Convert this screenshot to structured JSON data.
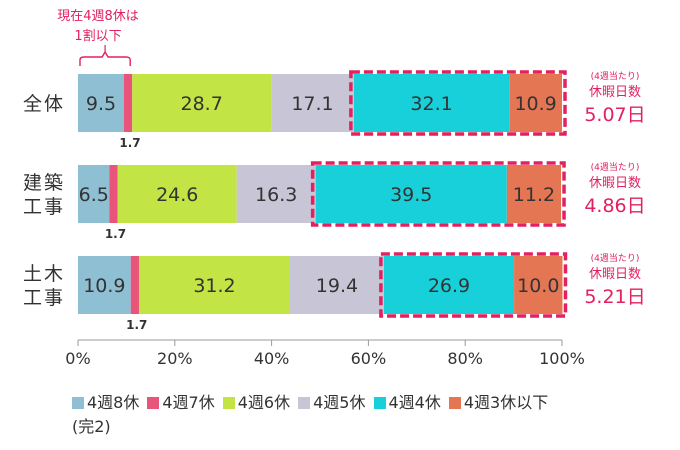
{
  "chart_data": {
    "type": "bar",
    "orientation": "horizontal",
    "stacked": true,
    "categories": [
      "全体",
      "建築\n工事",
      "土木\n工事"
    ],
    "series": [
      {
        "name": "4週8休",
        "color": "#8ebfd3",
        "values": [
          9.5,
          6.5,
          10.9
        ]
      },
      {
        "name": "4週7休",
        "color": "#e9557a",
        "values": [
          1.7,
          1.7,
          1.7
        ]
      },
      {
        "name": "4週6休",
        "color": "#c2e445",
        "values": [
          28.7,
          24.6,
          31.2
        ]
      },
      {
        "name": "4週5休",
        "color": "#c8c6d6",
        "values": [
          17.1,
          16.3,
          19.4
        ]
      },
      {
        "name": "4週4休",
        "color": "#18d0da",
        "values": [
          32.1,
          39.5,
          26.9
        ]
      },
      {
        "name": "4週3休以下",
        "color": "#e57654",
        "values": [
          10.9,
          11.2,
          10.0
        ]
      }
    ],
    "value_labels": [
      [
        "9.5",
        "1.7",
        "28.7",
        "17.1",
        "32.1",
        "10.9"
      ],
      [
        "6.5",
        "1.7",
        "24.6",
        "16.3",
        "39.5",
        "11.2"
      ],
      [
        "10.9",
        "1.7",
        "31.2",
        "19.4",
        "26.9",
        "10.0"
      ]
    ],
    "xlim": [
      0,
      100
    ],
    "x_ticks": [
      "0%",
      "20%",
      "40%",
      "60%",
      "80%",
      "100%"
    ],
    "highlight_series": [
      "4週4休",
      "4週3休以下"
    ],
    "highlight_color": "#e2215f",
    "side_notes": [
      {
        "small": "(4週当たり)",
        "label": "休暇日数",
        "value": "5.07日"
      },
      {
        "small": "(4週当たり)",
        "label": "休暇日数",
        "value": "4.86日"
      },
      {
        "small": "(4週当たり)",
        "label": "休暇日数",
        "value": "5.21日"
      }
    ],
    "callout": {
      "line1": "現在4週8休は",
      "line2": "1割以下"
    },
    "legend_note": "(完2)",
    "grid": false
  }
}
